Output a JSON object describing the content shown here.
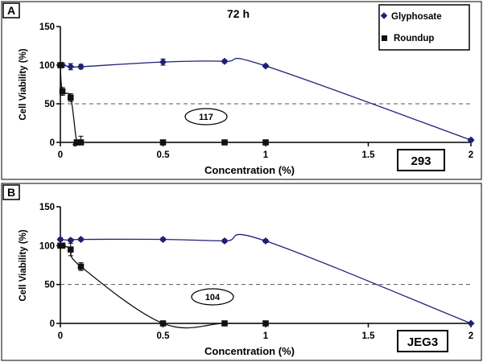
{
  "figure": {
    "title": "72 h"
  },
  "legend": {
    "glyphosate": "Glyphosate",
    "roundup": "Roundup"
  },
  "colors": {
    "glyphosate": "#1f1f7a",
    "roundup": "#111111",
    "dashed": "#555555"
  },
  "chart_data": [
    {
      "type": "line",
      "panel_label": "A",
      "cell_line": "293",
      "title": "72 h",
      "xlabel": "Concentration (%)",
      "ylabel": "Cell Viability (%)",
      "xlim": [
        0,
        2
      ],
      "ylim": [
        0,
        150
      ],
      "x_ticks": [
        "0",
        "0.5",
        "1",
        "1.5",
        "2"
      ],
      "y_ticks": [
        "0",
        "50",
        "100",
        "150"
      ],
      "reference_line": 50,
      "annotation": "117",
      "legend_position": "top-right",
      "series": [
        {
          "name": "Glyphosate",
          "marker": "diamond",
          "x": [
            0,
            0.01,
            0.05,
            0.1,
            0.5,
            0.8,
            1,
            2
          ],
          "y": [
            100,
            100,
            98,
            98,
            104,
            105,
            99,
            3
          ],
          "err": [
            3,
            3,
            4,
            3,
            4,
            2,
            2,
            2
          ]
        },
        {
          "name": "Roundup",
          "marker": "square",
          "x": [
            0,
            0.01,
            0.05,
            0.08,
            0.1,
            0.5,
            0.8,
            1
          ],
          "y": [
            100,
            66,
            58,
            0,
            0,
            0,
            0,
            0
          ],
          "err": [
            3,
            5,
            5,
            0,
            8,
            0,
            0,
            0
          ]
        }
      ]
    },
    {
      "type": "line",
      "panel_label": "B",
      "cell_line": "JEG3",
      "title": "",
      "xlabel": "Concentration (%)",
      "ylabel": "Cell Viability (%)",
      "xlim": [
        0,
        2
      ],
      "ylim": [
        0,
        150
      ],
      "x_ticks": [
        "0",
        "0.5",
        "1",
        "1.5",
        "2"
      ],
      "y_ticks": [
        "0",
        "50",
        "100",
        "150"
      ],
      "reference_line": 50,
      "annotation": "104",
      "legend_position": "none",
      "series": [
        {
          "name": "Glyphosate",
          "marker": "diamond",
          "x": [
            0,
            0.05,
            0.1,
            0.5,
            0.8,
            1,
            2
          ],
          "y": [
            108,
            107,
            108,
            108,
            106,
            106,
            0
          ],
          "err": [
            2,
            2,
            2,
            2,
            2,
            2,
            1
          ]
        },
        {
          "name": "Roundup",
          "marker": "square",
          "x": [
            0,
            0.01,
            0.05,
            0.1,
            0.5,
            0.8,
            1
          ],
          "y": [
            100,
            100,
            95,
            73,
            0,
            0,
            0
          ],
          "err": [
            3,
            3,
            8,
            5,
            0,
            0,
            0
          ]
        }
      ]
    }
  ]
}
